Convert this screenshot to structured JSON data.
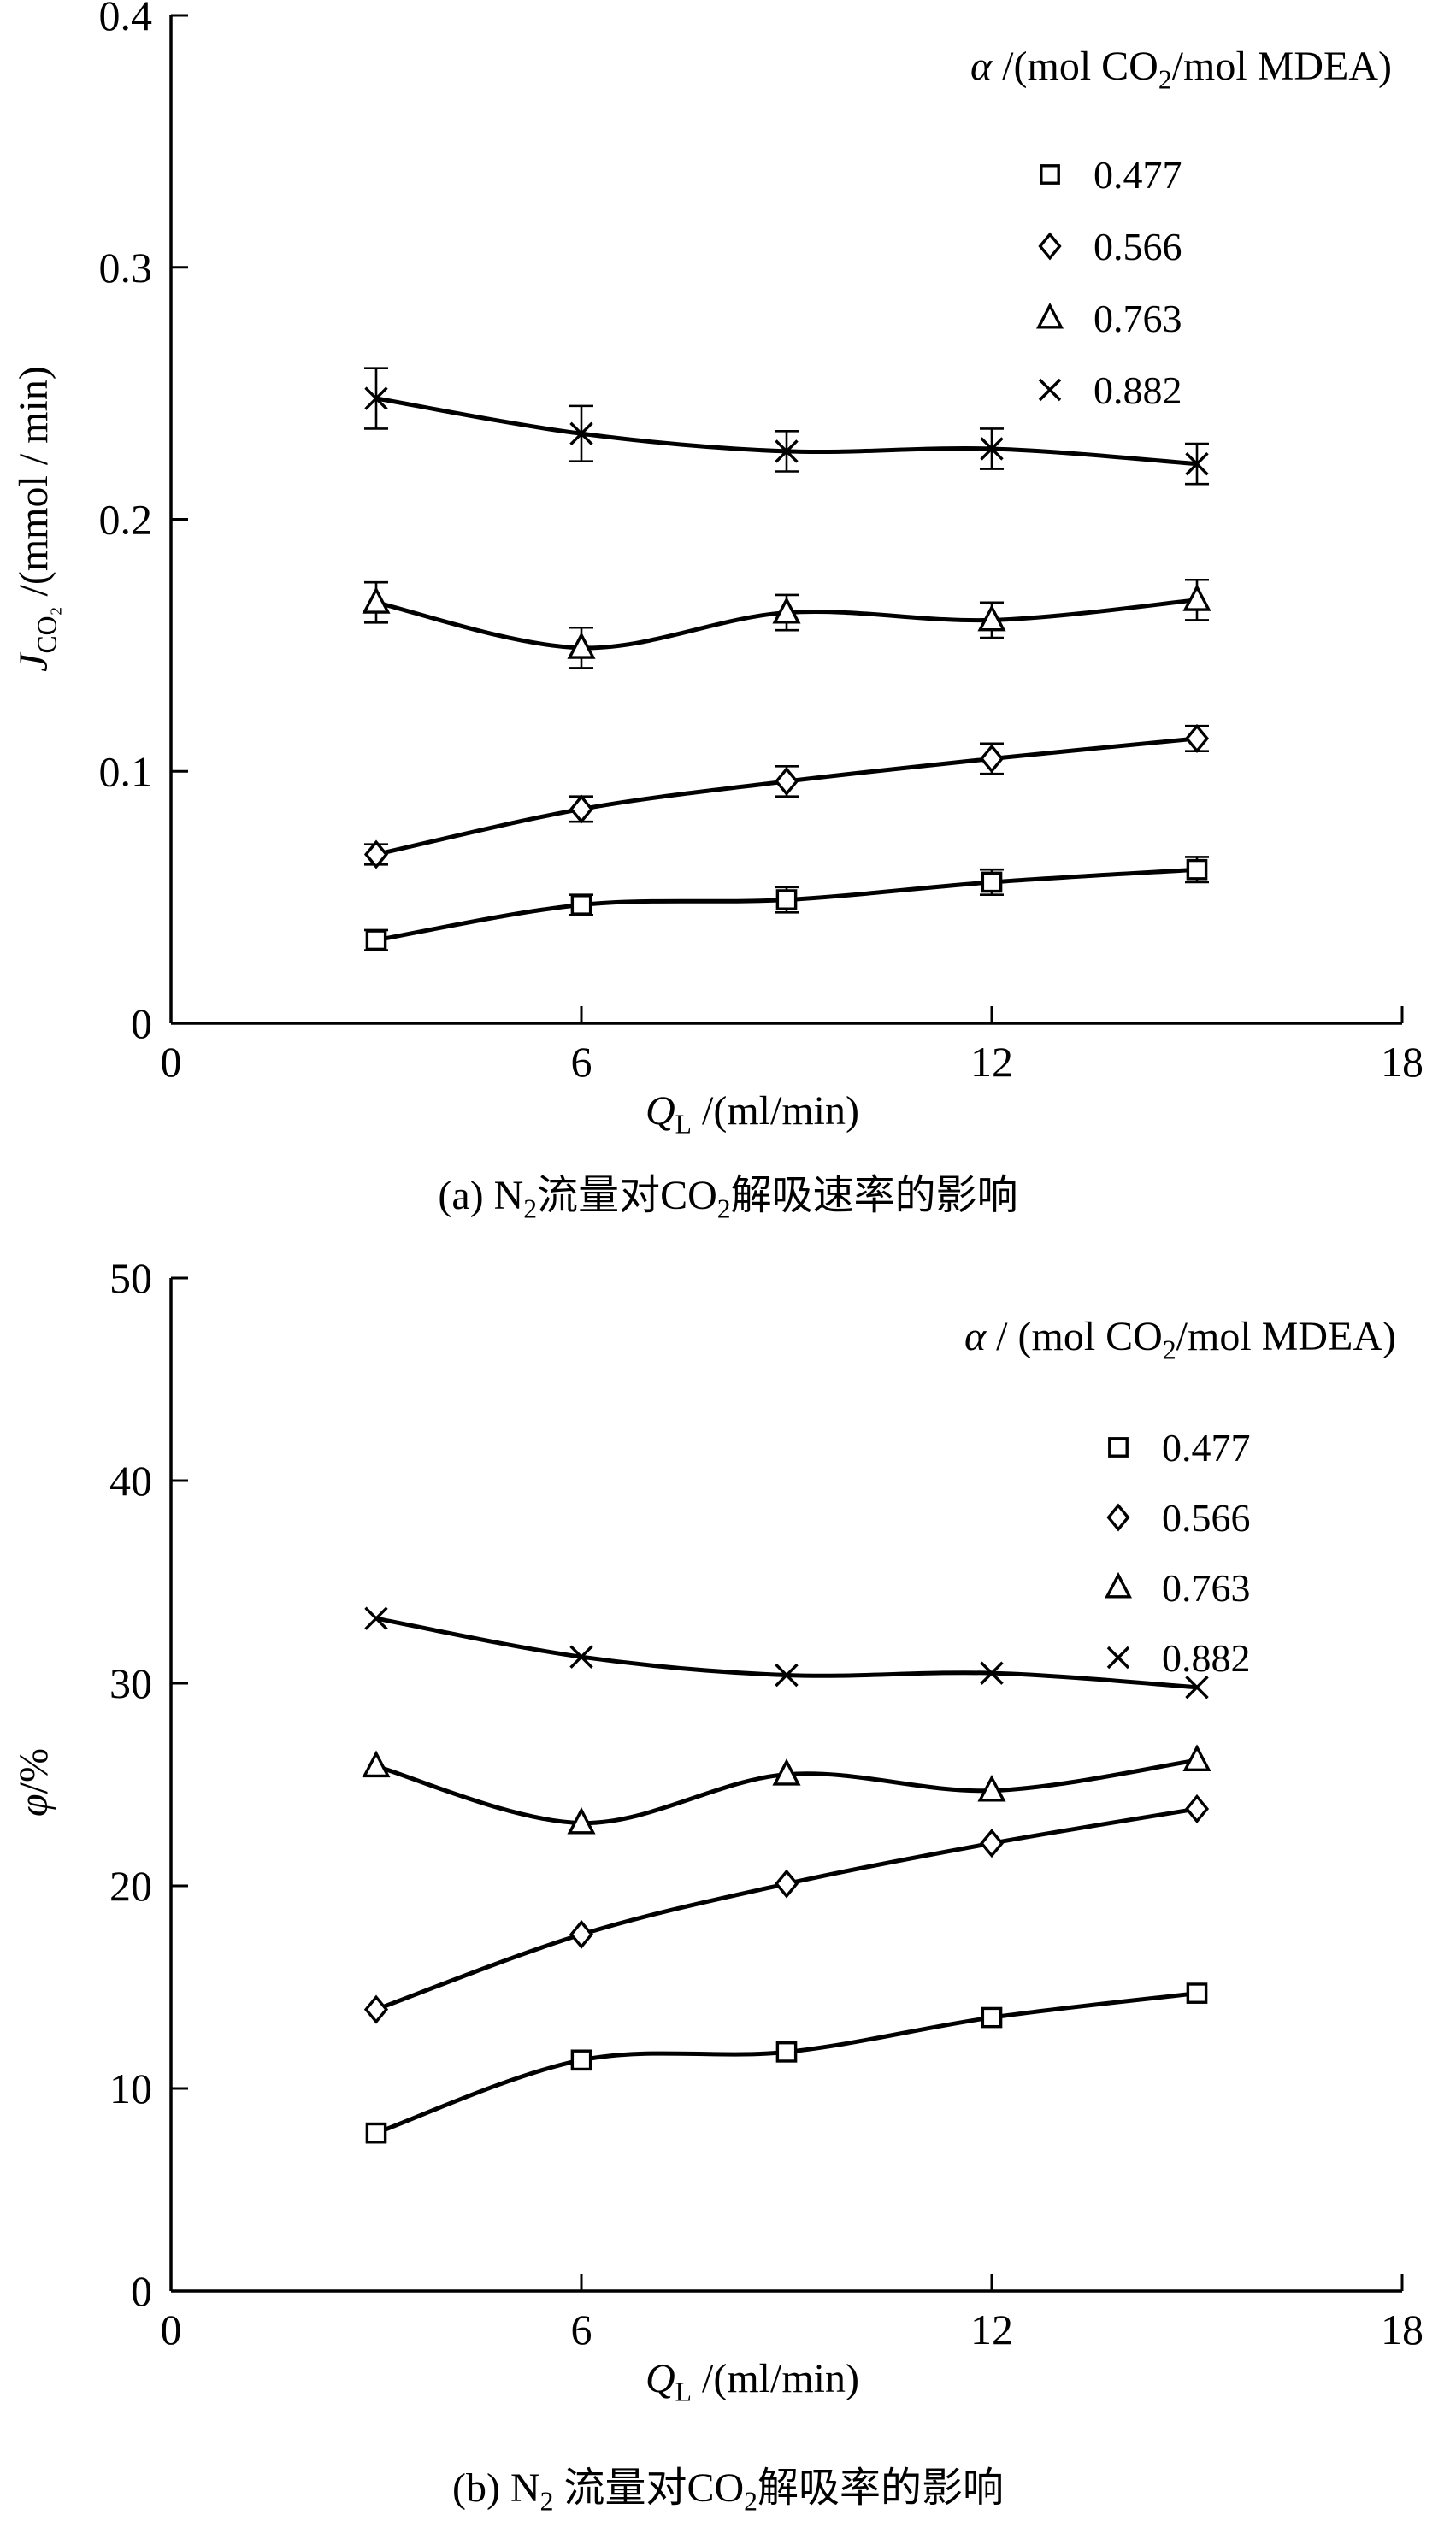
{
  "chart_data": [
    {
      "id": "a",
      "type": "line",
      "panel": "(a)",
      "grid": false,
      "legend_position": "top-right-inside",
      "legend_title_parts": [
        {
          "t": "α",
          "i": 1
        },
        {
          "t": " /(mol CO"
        },
        {
          "t": "2",
          "s": 1
        },
        {
          "t": "/mol MDEA)"
        }
      ],
      "xlabel_parts": [
        {
          "t": "Q",
          "i": 1
        },
        {
          "t": "L",
          "s": 1
        },
        {
          "t": " /(ml/min)"
        }
      ],
      "ylabel_parts": [
        {
          "t": "J",
          "i": 1
        },
        {
          "t": "CO₂",
          "s": 1
        },
        {
          "t": " /(mmol / min)"
        }
      ],
      "caption_parts": [
        {
          "t": "(a) N"
        },
        {
          "t": "2",
          "s": 1
        },
        {
          "t": "流量对CO"
        },
        {
          "t": "2",
          "s": 1
        },
        {
          "t": "解吸速率的影响"
        }
      ],
      "xlim": [
        0,
        18
      ],
      "ylim": [
        0,
        0.4
      ],
      "xticks": {
        "values": [
          0,
          6,
          12,
          18
        ],
        "labels": [
          "0",
          "6",
          "12",
          "18"
        ]
      },
      "yticks": {
        "values": [
          0,
          0.1,
          0.2,
          0.3,
          0.4
        ],
        "labels": [
          "0",
          "0.1",
          "0.2",
          "0.3",
          "0.4"
        ]
      },
      "x": [
        3,
        6,
        9,
        12,
        15
      ],
      "series": [
        {
          "name": "0.477",
          "marker": "square",
          "values": [
            0.033,
            0.047,
            0.049,
            0.056,
            0.061
          ],
          "errors": [
            0.004,
            0.004,
            0.005,
            0.005,
            0.005
          ]
        },
        {
          "name": "0.566",
          "marker": "diamond",
          "values": [
            0.067,
            0.085,
            0.096,
            0.105,
            0.113
          ],
          "errors": [
            0.004,
            0.005,
            0.006,
            0.006,
            0.005
          ]
        },
        {
          "name": "0.763",
          "marker": "triangle",
          "values": [
            0.167,
            0.149,
            0.163,
            0.16,
            0.168
          ],
          "errors": [
            0.008,
            0.008,
            0.007,
            0.007,
            0.008
          ]
        },
        {
          "name": "0.882",
          "marker": "cross",
          "values": [
            0.248,
            0.234,
            0.227,
            0.228,
            0.222
          ],
          "errors": [
            0.012,
            0.011,
            0.008,
            0.008,
            0.008
          ]
        }
      ]
    },
    {
      "id": "b",
      "type": "line",
      "panel": "(b)",
      "grid": false,
      "legend_position": "top-right-inside",
      "legend_title_parts": [
        {
          "t": "α",
          "i": 1
        },
        {
          "t": " / (mol CO"
        },
        {
          "t": "2",
          "s": 1
        },
        {
          "t": "/mol MDEA)"
        }
      ],
      "xlabel_parts": [
        {
          "t": "Q",
          "i": 1
        },
        {
          "t": "L",
          "s": 1
        },
        {
          "t": " /(ml/min)"
        }
      ],
      "ylabel_parts": [
        {
          "t": "φ",
          "i": 1
        },
        {
          "t": "/%"
        }
      ],
      "caption_parts": [
        {
          "t": "(b) N"
        },
        {
          "t": "2",
          "s": 1
        },
        {
          "t": " 流量对CO"
        },
        {
          "t": "2",
          "s": 1
        },
        {
          "t": "解吸率的影响"
        }
      ],
      "xlim": [
        0,
        18
      ],
      "ylim": [
        0,
        50
      ],
      "xticks": {
        "values": [
          0,
          6,
          12,
          18
        ],
        "labels": [
          "0",
          "6",
          "12",
          "18"
        ]
      },
      "yticks": {
        "values": [
          0,
          10,
          20,
          30,
          40,
          50
        ],
        "labels": [
          "0",
          "10",
          "20",
          "30",
          "40",
          "50"
        ]
      },
      "x": [
        3,
        6,
        9,
        12,
        15
      ],
      "series": [
        {
          "name": "0.477",
          "marker": "square",
          "values": [
            7.8,
            11.4,
            11.8,
            13.5,
            14.7
          ]
        },
        {
          "name": "0.566",
          "marker": "diamond",
          "values": [
            13.9,
            17.6,
            20.1,
            22.1,
            23.8
          ]
        },
        {
          "name": "0.763",
          "marker": "triangle",
          "values": [
            25.9,
            23.1,
            25.5,
            24.7,
            26.2
          ]
        },
        {
          "name": "0.882",
          "marker": "cross",
          "values": [
            33.2,
            31.3,
            30.4,
            30.5,
            29.8
          ]
        }
      ]
    }
  ]
}
